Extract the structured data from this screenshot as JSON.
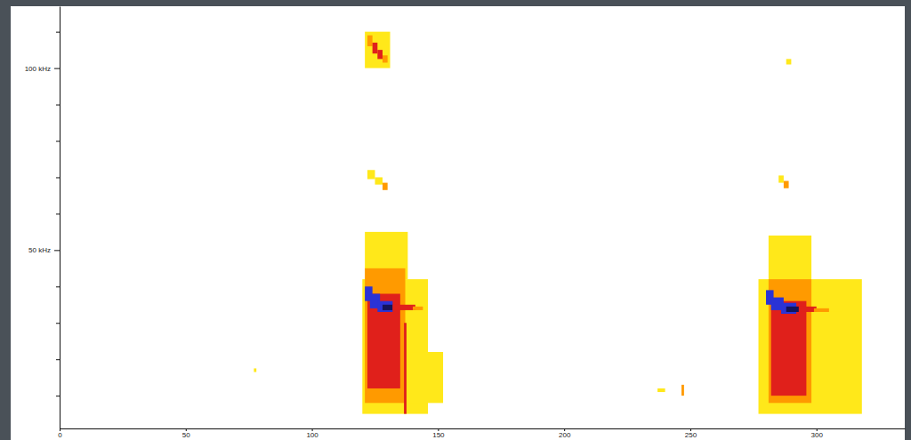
{
  "chart_data": {
    "type": "spectrogram",
    "xlim": [
      0,
      335
    ],
    "xticks": [
      0,
      50,
      100,
      150,
      200,
      250,
      300
    ],
    "ylim": [
      1,
      117
    ],
    "yticks": [
      {
        "value": 50,
        "label": "50 kHz"
      },
      {
        "value": 100,
        "label": "100 kHz"
      }
    ],
    "yticks_minor": [
      10,
      20,
      30,
      40,
      60,
      70,
      80,
      90,
      110
    ],
    "levels": [
      1,
      2,
      3,
      4,
      5
    ],
    "colors": [
      "#ffe81a",
      "#ff9a00",
      "#e0201b",
      "#2a33d6",
      "#14145a"
    ],
    "cells": [
      {
        "time": [
          77,
          78
        ],
        "freq": [
          16.5,
          17.5
        ],
        "level": 1
      },
      {
        "time": [
          121,
          138
        ],
        "freq": [
          42,
          55
        ],
        "level": 1
      },
      {
        "time": [
          120,
          146
        ],
        "freq": [
          5,
          42
        ],
        "level": 1
      },
      {
        "time": [
          138,
          152
        ],
        "freq": [
          8,
          22
        ],
        "level": 1
      },
      {
        "time": [
          121,
          137
        ],
        "freq": [
          8,
          45
        ],
        "level": 2
      },
      {
        "time": [
          122,
          135
        ],
        "freq": [
          12,
          38
        ],
        "level": 3
      },
      {
        "time": [
          136.5,
          137.5
        ],
        "freq": [
          5,
          30
        ],
        "level": 3
      },
      {
        "time": [
          121,
          124
        ],
        "freq": [
          36,
          40
        ],
        "level": 4
      },
      {
        "time": [
          123,
          127
        ],
        "freq": [
          34,
          38
        ],
        "level": 4
      },
      {
        "time": [
          126,
          132
        ],
        "freq": [
          33,
          36
        ],
        "level": 4
      },
      {
        "time": [
          128,
          132
        ],
        "freq": [
          33.5,
          35
        ],
        "level": 5
      },
      {
        "time": [
          132,
          141
        ],
        "freq": [
          33.5,
          35
        ],
        "level": 3
      },
      {
        "time": [
          140,
          144
        ],
        "freq": [
          33.5,
          34.5
        ],
        "level": 2
      },
      {
        "time": [
          121,
          131
        ],
        "freq": [
          100,
          110
        ],
        "level": 1
      },
      {
        "time": [
          122,
          124
        ],
        "freq": [
          106,
          109
        ],
        "level": 2
      },
      {
        "time": [
          124,
          126
        ],
        "freq": [
          104,
          107
        ],
        "level": 3
      },
      {
        "time": [
          126,
          128
        ],
        "freq": [
          102.5,
          105
        ],
        "level": 3
      },
      {
        "time": [
          128,
          130
        ],
        "freq": [
          101.5,
          103.5
        ],
        "level": 2
      },
      {
        "time": [
          122,
          125
        ],
        "freq": [
          69.5,
          72
        ],
        "level": 1
      },
      {
        "time": [
          125,
          128
        ],
        "freq": [
          68,
          70
        ],
        "level": 1
      },
      {
        "time": [
          128,
          130
        ],
        "freq": [
          66.5,
          68.5
        ],
        "level": 2
      },
      {
        "time": [
          237,
          240
        ],
        "freq": [
          11,
          12
        ],
        "level": 1
      },
      {
        "time": [
          246.5,
          247.5
        ],
        "freq": [
          10,
          13
        ],
        "level": 2
      },
      {
        "time": [
          281,
          298
        ],
        "freq": [
          42,
          54
        ],
        "level": 1
      },
      {
        "time": [
          277,
          318
        ],
        "freq": [
          5,
          42
        ],
        "level": 1
      },
      {
        "time": [
          281,
          298
        ],
        "freq": [
          8,
          42
        ],
        "level": 2
      },
      {
        "time": [
          282,
          296
        ],
        "freq": [
          10,
          36
        ],
        "level": 3
      },
      {
        "time": [
          280,
          283
        ],
        "freq": [
          35,
          39
        ],
        "level": 4
      },
      {
        "time": [
          282,
          287
        ],
        "freq": [
          33.5,
          37
        ],
        "level": 4
      },
      {
        "time": [
          286,
          292
        ],
        "freq": [
          32.5,
          35.5
        ],
        "level": 4
      },
      {
        "time": [
          288,
          293
        ],
        "freq": [
          33,
          34.5
        ],
        "level": 5
      },
      {
        "time": [
          293,
          300
        ],
        "freq": [
          33,
          34.5
        ],
        "level": 3
      },
      {
        "time": [
          299,
          305
        ],
        "freq": [
          33,
          34
        ],
        "level": 2
      },
      {
        "time": [
          305,
          310
        ],
        "freq": [
          33,
          34
        ],
        "level": 1
      },
      {
        "time": [
          285,
          287
        ],
        "freq": [
          68.5,
          70.5
        ],
        "level": 1
      },
      {
        "time": [
          287,
          289
        ],
        "freq": [
          67,
          69
        ],
        "level": 2
      },
      {
        "time": [
          288,
          290
        ],
        "freq": [
          101,
          102.5
        ],
        "level": 1
      }
    ]
  }
}
